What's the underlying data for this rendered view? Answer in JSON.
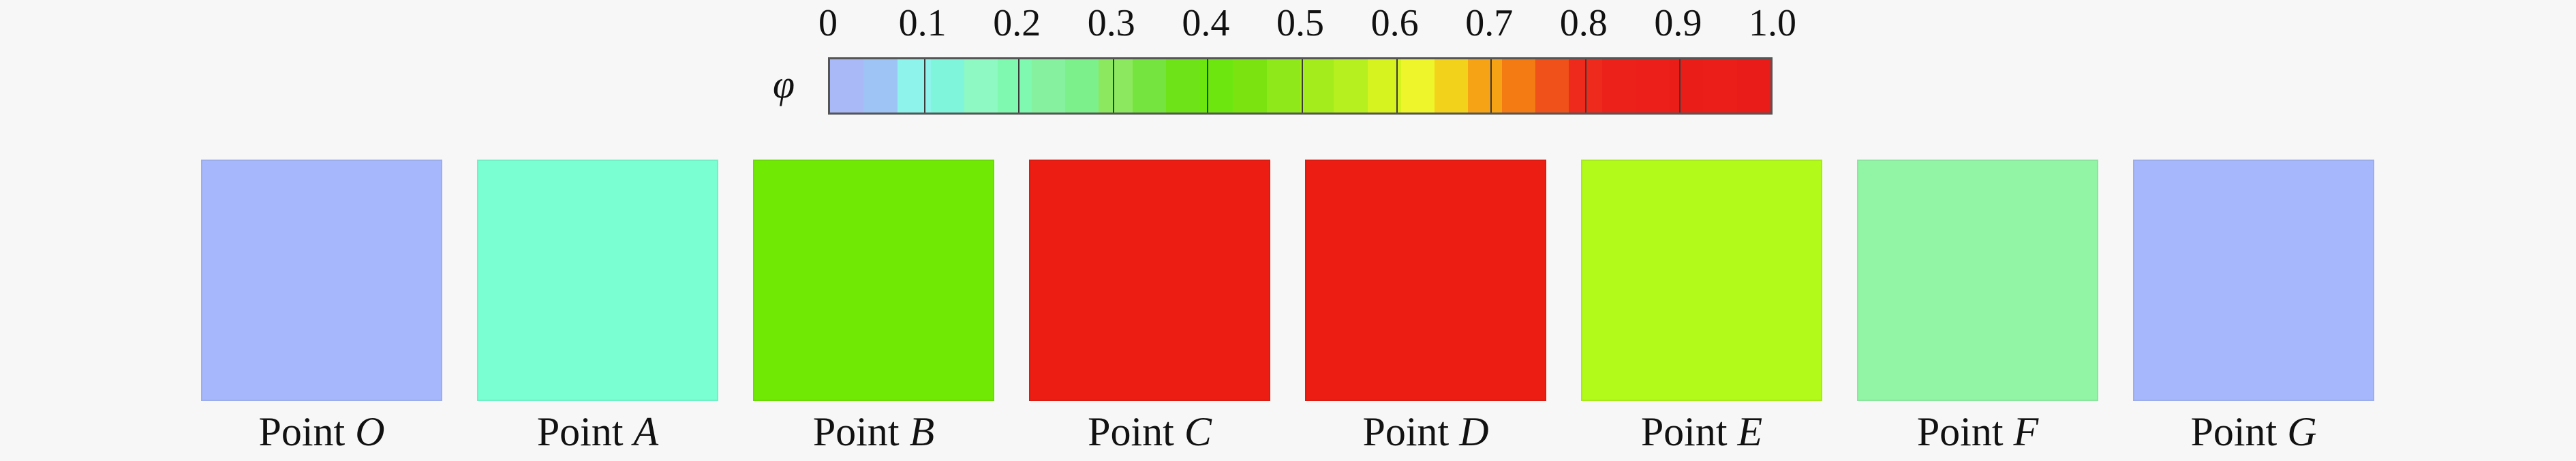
{
  "colorbar": {
    "symbol": "φ",
    "ticks": [
      "0",
      "0.1",
      "0.2",
      "0.3",
      "0.4",
      "0.5",
      "0.6",
      "0.7",
      "0.8",
      "0.9",
      "1.0"
    ],
    "colors": [
      "#a9b8f7",
      "#9ec4f6",
      "#8ef3ea",
      "#7ff6dc",
      "#8ff9c3",
      "#7ff8b0",
      "#86f2a0",
      "#7cf08a",
      "#8ce85e",
      "#76e43e",
      "#6ee418",
      "#6de610",
      "#7be410",
      "#8ee81a",
      "#a4ec1c",
      "#b6f01e",
      "#d6f31f",
      "#eef52a",
      "#f3d21c",
      "#f6a316",
      "#f47a14",
      "#f0501a",
      "#ee2a1c",
      "#ec221a",
      "#ec1f1a",
      "#eb1d19",
      "#ec1e19",
      "#ea1c19"
    ]
  },
  "points": [
    {
      "prefix": "Point",
      "letter": "O",
      "color": "#a6b8fb",
      "phi": 0.0
    },
    {
      "prefix": "Point",
      "letter": "A",
      "color": "#7affd2",
      "phi": 0.15
    },
    {
      "prefix": "Point",
      "letter": "B",
      "color": "#70ea04",
      "phi": 0.55
    },
    {
      "prefix": "Point",
      "letter": "C",
      "color": "#ec1d12",
      "phi": 1.0
    },
    {
      "prefix": "Point",
      "letter": "D",
      "color": "#ec1d12",
      "phi": 1.0
    },
    {
      "prefix": "Point",
      "letter": "E",
      "color": "#b1fa1a",
      "phi": 0.65
    },
    {
      "prefix": "Point",
      "letter": "F",
      "color": "#92f5a6",
      "phi": 0.25
    },
    {
      "prefix": "Point",
      "letter": "G",
      "color": "#a6b8fb",
      "phi": 0.0
    }
  ]
}
